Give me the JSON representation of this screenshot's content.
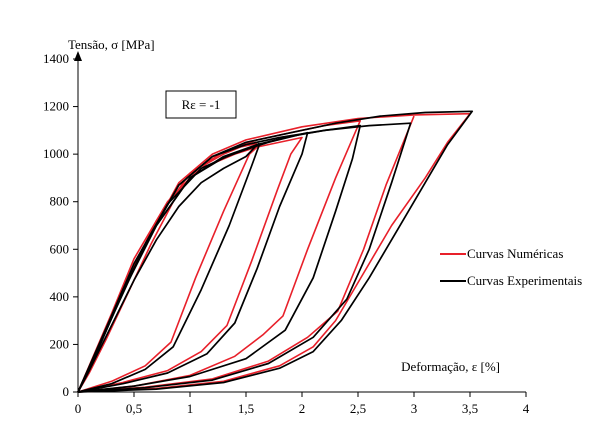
{
  "chart_data": {
    "type": "line",
    "ylabel": "Tensão, σ [MPa]",
    "xlabel": "Deformação, ε [%]",
    "annotation": "Rε = -1",
    "xlim": [
      0,
      4
    ],
    "ylim": [
      0,
      1400
    ],
    "x_ticks": [
      "0",
      "0,5",
      "1",
      "1,5",
      "2",
      "2,5",
      "3",
      "3,5",
      "4"
    ],
    "y_ticks": [
      "0",
      "200",
      "400",
      "600",
      "800",
      "1000",
      "1200",
      "1400"
    ],
    "legend": {
      "placement": "right",
      "entries": [
        {
          "label": "Curvas Numéricas",
          "color": "#e8202a"
        },
        {
          "label": "Curvas Experimentais",
          "color": "#000000"
        }
      ]
    },
    "series": [
      {
        "name": "Curvas Numéricas",
        "color": "#e8202a",
        "curves": [
          [
            [
              0,
              0
            ],
            [
              0.1,
              80
            ],
            [
              0.25,
              220
            ],
            [
              0.45,
              420
            ],
            [
              0.65,
              620
            ],
            [
              0.85,
              800
            ],
            [
              1.0,
              900
            ],
            [
              1.15,
              960
            ],
            [
              1.3,
              1000
            ],
            [
              1.45,
              1030
            ],
            [
              1.6,
              1045
            ]
          ],
          [
            [
              0,
              0
            ],
            [
              0.3,
              45
            ],
            [
              0.6,
              110
            ],
            [
              0.83,
              210
            ],
            [
              1.05,
              480
            ],
            [
              1.3,
              760
            ],
            [
              1.53,
              1000
            ],
            [
              1.6,
              1030
            ],
            [
              1.62,
              1045
            ]
          ],
          [
            [
              0,
              0
            ],
            [
              0.4,
              40
            ],
            [
              0.8,
              90
            ],
            [
              1.1,
              170
            ],
            [
              1.33,
              280
            ],
            [
              1.55,
              550
            ],
            [
              1.78,
              850
            ],
            [
              1.9,
              1000
            ],
            [
              2.0,
              1070
            ],
            [
              1.6,
              1030
            ],
            [
              1.4,
              1000
            ],
            [
              1.2,
              960
            ],
            [
              1.0,
              900
            ],
            [
              0.8,
              800
            ],
            [
              0.5,
              560
            ],
            [
              0.3,
              330
            ],
            [
              0.1,
              110
            ],
            [
              0,
              0
            ]
          ],
          [
            [
              0,
              0
            ],
            [
              0.5,
              25
            ],
            [
              1.0,
              70
            ],
            [
              1.4,
              150
            ],
            [
              1.65,
              240
            ],
            [
              1.83,
              320
            ],
            [
              2.05,
              600
            ],
            [
              2.3,
              900
            ],
            [
              2.52,
              1140
            ],
            [
              2.2,
              1120
            ],
            [
              1.9,
              1090
            ],
            [
              1.6,
              1060
            ],
            [
              1.3,
              1010
            ],
            [
              1.0,
              920
            ],
            [
              0.7,
              720
            ],
            [
              0.4,
              430
            ],
            [
              0.1,
              100
            ],
            [
              0,
              0
            ]
          ],
          [
            [
              0,
              0
            ],
            [
              0.6,
              20
            ],
            [
              1.2,
              55
            ],
            [
              1.7,
              130
            ],
            [
              2.05,
              230
            ],
            [
              2.32,
              340
            ],
            [
              2.55,
              600
            ],
            [
              2.75,
              870
            ],
            [
              3.0,
              1160
            ]
          ],
          [
            [
              0,
              0
            ],
            [
              0.7,
              15
            ],
            [
              1.3,
              45
            ],
            [
              1.8,
              110
            ],
            [
              2.1,
              190
            ],
            [
              2.3,
              300
            ],
            [
              2.55,
              500
            ],
            [
              2.8,
              700
            ],
            [
              3.1,
              900
            ],
            [
              3.3,
              1050
            ],
            [
              3.5,
              1170
            ],
            [
              3.0,
              1165
            ],
            [
              2.5,
              1150
            ],
            [
              2.0,
              1115
            ],
            [
              1.5,
              1060
            ],
            [
              1.2,
              1000
            ],
            [
              0.9,
              880
            ],
            [
              0.6,
              620
            ],
            [
              0.3,
              320
            ],
            [
              0,
              0
            ]
          ]
        ]
      },
      {
        "name": "Curvas Experimentais",
        "color": "#000000",
        "curves": [
          [
            [
              0,
              0
            ],
            [
              0.1,
              90
            ],
            [
              0.3,
              280
            ],
            [
              0.5,
              470
            ],
            [
              0.7,
              640
            ],
            [
              0.9,
              780
            ],
            [
              1.1,
              880
            ],
            [
              1.3,
              940
            ],
            [
              1.5,
              990
            ],
            [
              1.6,
              1040
            ],
            [
              1.62,
              1045
            ]
          ],
          [
            [
              0,
              0
            ],
            [
              0.3,
              35
            ],
            [
              0.6,
              95
            ],
            [
              0.85,
              190
            ],
            [
              1.1,
              430
            ],
            [
              1.35,
              700
            ],
            [
              1.55,
              950
            ],
            [
              1.62,
              1040
            ],
            [
              1.3,
              985
            ],
            [
              1.0,
              900
            ],
            [
              0.7,
              700
            ],
            [
              0.4,
              420
            ],
            [
              0.1,
              90
            ],
            [
              0,
              0
            ]
          ],
          [
            [
              0,
              0
            ],
            [
              0.4,
              35
            ],
            [
              0.8,
              80
            ],
            [
              1.15,
              160
            ],
            [
              1.4,
              290
            ],
            [
              1.6,
              520
            ],
            [
              1.8,
              780
            ],
            [
              2.0,
              1000
            ],
            [
              2.05,
              1090
            ],
            [
              1.7,
              1050
            ],
            [
              1.4,
              1005
            ],
            [
              1.1,
              940
            ],
            [
              0.8,
              790
            ],
            [
              0.5,
              540
            ],
            [
              0.2,
              210
            ],
            [
              0,
              0
            ]
          ],
          [
            [
              0,
              0
            ],
            [
              0.5,
              25
            ],
            [
              1.0,
              65
            ],
            [
              1.5,
              140
            ],
            [
              1.85,
              260
            ],
            [
              2.1,
              480
            ],
            [
              2.3,
              760
            ],
            [
              2.45,
              980
            ],
            [
              2.52,
              1120
            ],
            [
              2.2,
              1100
            ],
            [
              1.9,
              1075
            ],
            [
              1.6,
              1040
            ],
            [
              1.3,
              990
            ],
            [
              1.0,
              900
            ],
            [
              0.7,
              700
            ],
            [
              0.4,
              430
            ],
            [
              0.1,
              100
            ],
            [
              0,
              0
            ]
          ],
          [
            [
              0,
              0
            ],
            [
              0.6,
              18
            ],
            [
              1.2,
              50
            ],
            [
              1.7,
              120
            ],
            [
              2.1,
              230
            ],
            [
              2.4,
              390
            ],
            [
              2.6,
              600
            ],
            [
              2.8,
              880
            ],
            [
              2.97,
              1130
            ],
            [
              2.6,
              1120
            ],
            [
              2.2,
              1100
            ],
            [
              1.8,
              1070
            ],
            [
              1.5,
              1040
            ],
            [
              1.2,
              990
            ],
            [
              0.9,
              870
            ],
            [
              0.6,
              620
            ],
            [
              0.3,
              320
            ],
            [
              0,
              0
            ]
          ],
          [
            [
              0,
              0
            ],
            [
              0.7,
              12
            ],
            [
              1.3,
              40
            ],
            [
              1.8,
              100
            ],
            [
              2.1,
              170
            ],
            [
              2.35,
              300
            ],
            [
              2.6,
              480
            ],
            [
              2.85,
              680
            ],
            [
              3.1,
              880
            ],
            [
              3.3,
              1040
            ],
            [
              3.52,
              1180
            ],
            [
              3.1,
              1175
            ],
            [
              2.7,
              1160
            ],
            [
              2.3,
              1130
            ],
            [
              1.9,
              1090
            ],
            [
              1.5,
              1050
            ],
            [
              1.2,
              990
            ],
            [
              0.9,
              870
            ],
            [
              0.6,
              620
            ],
            [
              0.3,
              310
            ],
            [
              0,
              0
            ]
          ]
        ]
      }
    ]
  }
}
